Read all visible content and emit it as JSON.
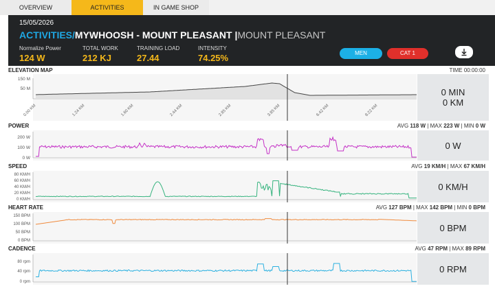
{
  "tabs": [
    {
      "label": "OVERVIEW"
    },
    {
      "label": "ACTIVITIES"
    },
    {
      "label": "IN GAME SHOP"
    }
  ],
  "header": {
    "date": "15/05/2026",
    "title_prefix": "ACTIVITIES/",
    "title_main": "MYWHOOSH - MOUNT PLEASANT",
    "title_sep": " |",
    "title_sub": "MOUNT PLEASANT",
    "stats": [
      {
        "label": "Normalize Power",
        "value": "124 W"
      },
      {
        "label": "TOTAL WORK",
        "value": "212 KJ"
      },
      {
        "label": "TRAINING LOAD",
        "value": "27.44"
      },
      {
        "label": "INTENSITY",
        "value": "74.25%"
      }
    ],
    "buttons": {
      "men": "MEN",
      "cat": "CAT 1"
    },
    "download_icon": "download-icon"
  },
  "colors": {
    "accent_yellow": "#f5b81a",
    "accent_blue": "#1fa7e3",
    "men_button": "#1cb0e6",
    "cat_button": "#e0302b",
    "power": "#c42fc6",
    "speed": "#35b37e",
    "heart": "#f08a3c",
    "cadence": "#2ab0e0",
    "elevation": "#444444"
  },
  "elevation": {
    "title": "ELEVATION MAP",
    "right": "TIME 00:00:00",
    "panel_line1": "0 MIN",
    "panel_line2": "0 KM",
    "y_ticks": [
      "150 M",
      "50 M"
    ],
    "x_ticks": [
      "0.00 KM",
      "1.24 KM",
      "1.60 KM",
      "2.44 KM",
      "2.85 KM",
      "3.85 KM",
      "6.42 KM",
      "8.22 KM"
    ]
  },
  "power": {
    "title": "POWER",
    "avg_label": "AVG",
    "avg_value": "118 W",
    "max_label": "MAX",
    "max_value": "223 W",
    "min_label": "MIN",
    "min_value": "0 W",
    "panel": "0 W",
    "y_ticks": [
      "200 W",
      "100 W",
      "0 W"
    ]
  },
  "speed": {
    "title": "SPEED",
    "avg_label": "AVG",
    "avg_value": "19 KM/H",
    "max_label": "MAX",
    "max_value": "67 KM/H",
    "panel": "0 KM/H",
    "y_ticks": [
      "80 KM/H",
      "60 KM/H",
      "40 KM/H",
      "20 KM/H",
      "0 KM/H"
    ]
  },
  "heart": {
    "title": "HEART RATE",
    "avg_label": "AVG",
    "avg_value": "127 BPM",
    "max_label": "MAX",
    "max_value": "142 BPM",
    "min_label": "MIN",
    "min_value": "0 BPM",
    "panel": "0 BPM",
    "y_ticks": [
      "150 BPM",
      "100 BPM",
      "50 BPM",
      "0 BPM"
    ]
  },
  "cadence": {
    "title": "CADENCE",
    "avg_label": "AVG",
    "avg_value": "47 RPM",
    "max_label": "MAX",
    "max_value": "89 RPM",
    "panel": "0 RPM",
    "y_ticks": [
      "80 rpm",
      "40 rpm",
      "0 rpm"
    ]
  }
}
